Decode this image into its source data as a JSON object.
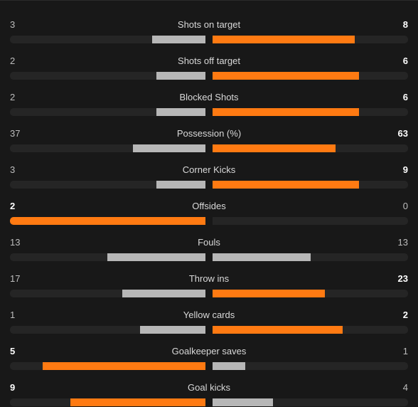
{
  "colors": {
    "leader": "#ff7a12",
    "trailer": "#b7b7b7",
    "track": "#252525",
    "background": "#181818"
  },
  "stats": [
    {
      "label": "Shots on target",
      "home": "3",
      "away": "8",
      "home_share": 0.273,
      "away_share": 0.727
    },
    {
      "label": "Shots off target",
      "home": "2",
      "away": "6",
      "home_share": 0.25,
      "away_share": 0.75
    },
    {
      "label": "Blocked Shots",
      "home": "2",
      "away": "6",
      "home_share": 0.25,
      "away_share": 0.75
    },
    {
      "label": "Possession (%)",
      "home": "37",
      "away": "63",
      "home_share": 0.37,
      "away_share": 0.63
    },
    {
      "label": "Corner Kicks",
      "home": "3",
      "away": "9",
      "home_share": 0.25,
      "away_share": 0.75
    },
    {
      "label": "Offsides",
      "home": "2",
      "away": "0",
      "home_share": 1.0,
      "away_share": 0.0
    },
    {
      "label": "Fouls",
      "home": "13",
      "away": "13",
      "home_share": 0.5,
      "away_share": 0.5
    },
    {
      "label": "Throw ins",
      "home": "17",
      "away": "23",
      "home_share": 0.425,
      "away_share": 0.575
    },
    {
      "label": "Yellow cards",
      "home": "1",
      "away": "2",
      "home_share": 0.333,
      "away_share": 0.667
    },
    {
      "label": "Goalkeeper saves",
      "home": "5",
      "away": "1",
      "home_share": 0.833,
      "away_share": 0.167
    },
    {
      "label": "Goal kicks",
      "home": "9",
      "away": "4",
      "home_share": 0.692,
      "away_share": 0.308
    }
  ]
}
